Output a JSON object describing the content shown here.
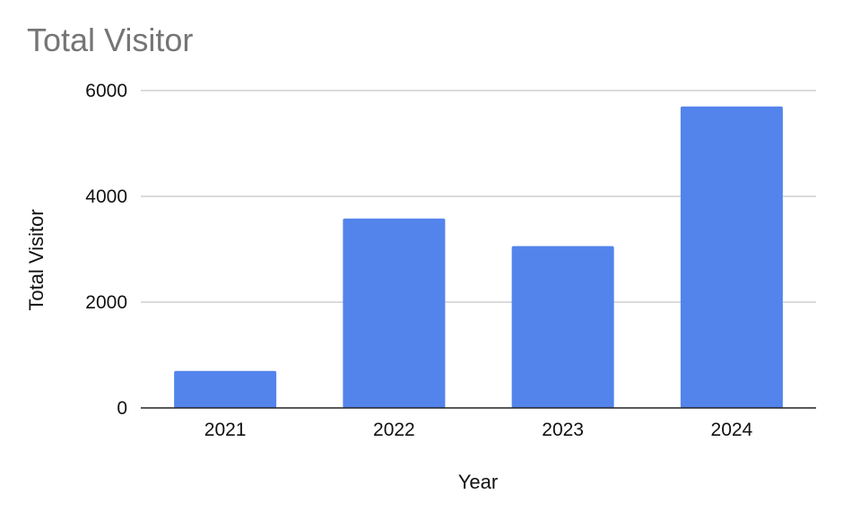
{
  "chart_data": {
    "type": "bar",
    "title": "Total Visitor",
    "xlabel": "Year",
    "ylabel": "Total Visitor",
    "categories": [
      "2021",
      "2022",
      "2023",
      "2024"
    ],
    "series": [
      {
        "values": [
          700,
          3580,
          3060,
          5700
        ]
      }
    ],
    "ylim": [
      0,
      6000
    ],
    "yticks": [
      0,
      2000,
      4000,
      6000
    ],
    "grid": true,
    "bar_color": "#5384EC",
    "grid_color": "#CFCFCF",
    "axis_color": "#222222"
  }
}
